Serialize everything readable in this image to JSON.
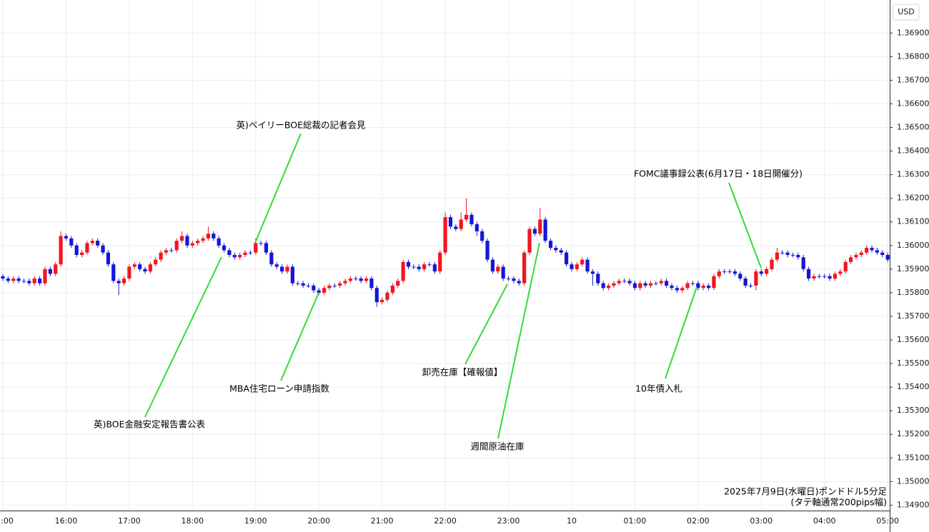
{
  "chart_data": {
    "type": "candlestick",
    "currency": "USD",
    "note_lines": [
      "2025年7月9日(水曜日)ポンドドル5分足",
      "(タテ軸通常200pips幅)"
    ],
    "up_color": "#f01620",
    "down_color": "#1616d6",
    "grid": true,
    "ylim": [
      1.3488,
      1.3704
    ],
    "yticks": [
      {
        "value": 1.349,
        "label": "1.34900"
      },
      {
        "value": 1.35,
        "label": "1.35000"
      },
      {
        "value": 1.351,
        "label": "1.35100"
      },
      {
        "value": 1.352,
        "label": "1.35200"
      },
      {
        "value": 1.353,
        "label": "1.35300"
      },
      {
        "value": 1.354,
        "label": "1.35400"
      },
      {
        "value": 1.355,
        "label": "1.35500"
      },
      {
        "value": 1.356,
        "label": "1.35600"
      },
      {
        "value": 1.357,
        "label": "1.35700"
      },
      {
        "value": 1.358,
        "label": "1.35800"
      },
      {
        "value": 1.359,
        "label": "1.35900"
      },
      {
        "value": 1.36,
        "label": "1.36000"
      },
      {
        "value": 1.361,
        "label": "1.36100"
      },
      {
        "value": 1.362,
        "label": "1.36200"
      },
      {
        "value": 1.363,
        "label": "1.36300"
      },
      {
        "value": 1.364,
        "label": "1.36400"
      },
      {
        "value": 1.365,
        "label": "1.36500"
      },
      {
        "value": 1.366,
        "label": "1.36600"
      },
      {
        "value": 1.367,
        "label": "1.36700"
      },
      {
        "value": 1.368,
        "label": "1.36800"
      },
      {
        "value": 1.369,
        "label": "1.36900"
      }
    ],
    "categories": [
      ":00",
      null,
      null,
      null,
      null,
      null,
      null,
      null,
      null,
      null,
      null,
      null,
      "16:00",
      null,
      null,
      null,
      null,
      null,
      null,
      null,
      null,
      null,
      null,
      null,
      "17:00",
      null,
      null,
      null,
      null,
      null,
      null,
      null,
      null,
      null,
      null,
      null,
      "18:00",
      null,
      null,
      null,
      null,
      null,
      null,
      null,
      null,
      null,
      null,
      null,
      "19:00",
      null,
      null,
      null,
      null,
      null,
      null,
      null,
      null,
      null,
      null,
      null,
      "20:00",
      null,
      null,
      null,
      null,
      null,
      null,
      null,
      null,
      null,
      null,
      null,
      "21:00",
      null,
      null,
      null,
      null,
      null,
      null,
      null,
      null,
      null,
      null,
      null,
      "22:00",
      null,
      null,
      null,
      null,
      null,
      null,
      null,
      null,
      null,
      null,
      null,
      "23:00",
      null,
      null,
      null,
      null,
      null,
      null,
      null,
      null,
      null,
      null,
      null,
      "10",
      null,
      null,
      null,
      null,
      null,
      null,
      null,
      null,
      null,
      null,
      null,
      "01:00",
      null,
      null,
      null,
      null,
      null,
      null,
      null,
      null,
      null,
      null,
      null,
      "02:00",
      null,
      null,
      null,
      null,
      null,
      null,
      null,
      null,
      null,
      null,
      null,
      "03:00",
      null,
      null,
      null,
      null,
      null,
      null,
      null,
      null,
      null,
      null,
      null,
      "04:00",
      null,
      null,
      null,
      null,
      null,
      null,
      null,
      null,
      null,
      null,
      null,
      "05:00"
    ],
    "open": [
      1.3587,
      1.3586,
      1.3585,
      1.3586,
      1.3585,
      1.3585,
      1.3584,
      1.3586,
      1.3584,
      1.359,
      1.3588,
      1.3592,
      1.3604,
      1.3603,
      1.36,
      1.3596,
      1.3597,
      1.3601,
      1.3602,
      1.36,
      1.3597,
      1.3592,
      1.3585,
      1.3584,
      1.3586,
      1.3591,
      1.3592,
      1.359,
      1.3589,
      1.3592,
      1.3594,
      1.3597,
      1.3598,
      1.3598,
      1.3602,
      1.3604,
      1.36,
      1.3601,
      1.3602,
      1.3603,
      1.3605,
      1.3603,
      1.36,
      1.3598,
      1.3596,
      1.3595,
      1.3596,
      1.3597,
      1.3597,
      1.3601,
      1.3601,
      1.3597,
      1.3592,
      1.3591,
      1.3589,
      1.3591,
      1.3584,
      1.3584,
      1.3583,
      1.3583,
      1.3581,
      1.358,
      1.3582,
      1.3583,
      1.3583,
      1.3584,
      1.3585,
      1.3586,
      1.3586,
      1.3585,
      1.3586,
      1.3582,
      1.3576,
      1.3577,
      1.358,
      1.3583,
      1.3585,
      1.3593,
      1.3591,
      1.3591,
      1.359,
      1.3592,
      1.3592,
      1.3589,
      1.3597,
      1.3612,
      1.3608,
      1.3607,
      1.3611,
      1.3613,
      1.3609,
      1.3606,
      1.3602,
      1.3594,
      1.3589,
      1.3591,
      1.3586,
      1.3586,
      1.3585,
      1.3584,
      1.3597,
      1.3607,
      1.3605,
      1.3611,
      1.3602,
      1.3599,
      1.3598,
      1.3597,
      1.3592,
      1.359,
      1.3592,
      1.3594,
      1.3589,
      1.3588,
      1.3584,
      1.3582,
      1.3583,
      1.3584,
      1.3585,
      1.3585,
      1.3584,
      1.3582,
      1.3584,
      1.3583,
      1.3584,
      1.3584,
      1.3585,
      1.3583,
      1.3582,
      1.3581,
      1.3582,
      1.3584,
      1.3584,
      1.3582,
      1.3583,
      1.3582,
      1.3587,
      1.3589,
      1.3589,
      1.3589,
      1.3588,
      1.3586,
      1.3583,
      1.3583,
      1.3589,
      1.3588,
      1.359,
      1.3594,
      1.3597,
      1.3597,
      1.3596,
      1.3596,
      1.3595,
      1.359,
      1.3586,
      1.3587,
      1.3587,
      1.3587,
      1.3586,
      1.3588,
      1.3589,
      1.3593,
      1.3595,
      1.3596,
      1.3597,
      1.3599,
      1.3598,
      1.3597,
      1.3596
    ],
    "high": [
      1.3588,
      1.3587,
      1.3587,
      1.3587,
      1.3586,
      1.3586,
      1.3587,
      1.3587,
      1.3591,
      1.3591,
      1.3593,
      1.3606,
      1.3605,
      1.3604,
      1.3601,
      1.3598,
      1.3602,
      1.3603,
      1.3603,
      1.3601,
      1.3598,
      1.3593,
      1.3586,
      1.3587,
      1.3592,
      1.3593,
      1.3593,
      1.3591,
      1.3593,
      1.3595,
      1.3598,
      1.3599,
      1.3599,
      1.3603,
      1.3606,
      1.3605,
      1.3602,
      1.3603,
      1.3604,
      1.3608,
      1.3606,
      1.3604,
      1.3601,
      1.3599,
      1.3597,
      1.3597,
      1.3598,
      1.3598,
      1.3603,
      1.3602,
      1.3602,
      1.3598,
      1.3593,
      1.3592,
      1.3592,
      1.3592,
      1.3585,
      1.3585,
      1.3584,
      1.3584,
      1.3582,
      1.3583,
      1.3584,
      1.3584,
      1.3585,
      1.3586,
      1.3587,
      1.3587,
      1.3587,
      1.3587,
      1.3587,
      1.3583,
      1.3578,
      1.3581,
      1.3584,
      1.3586,
      1.3594,
      1.3594,
      1.3592,
      1.3592,
      1.3593,
      1.3593,
      1.3593,
      1.3598,
      1.3614,
      1.3613,
      1.3609,
      1.3614,
      1.362,
      1.3614,
      1.361,
      1.3607,
      1.3603,
      1.3595,
      1.3592,
      1.3592,
      1.3587,
      1.3587,
      1.3586,
      1.3598,
      1.3608,
      1.3608,
      1.3616,
      1.3612,
      1.3603,
      1.36,
      1.3599,
      1.3598,
      1.3593,
      1.3593,
      1.3595,
      1.3595,
      1.359,
      1.3589,
      1.3585,
      1.3584,
      1.3585,
      1.3586,
      1.3586,
      1.3586,
      1.3585,
      1.3585,
      1.3585,
      1.3585,
      1.3585,
      1.3586,
      1.3586,
      1.3584,
      1.3583,
      1.3583,
      1.3585,
      1.3585,
      1.3585,
      1.3584,
      1.3584,
      1.3588,
      1.359,
      1.359,
      1.359,
      1.359,
      1.3589,
      1.3587,
      1.3584,
      1.359,
      1.359,
      1.3591,
      1.3595,
      1.3599,
      1.3598,
      1.3598,
      1.3597,
      1.3597,
      1.3596,
      1.3591,
      1.3588,
      1.3588,
      1.3588,
      1.3588,
      1.3589,
      1.359,
      1.3594,
      1.3596,
      1.3597,
      1.3598,
      1.36,
      1.36,
      1.3599,
      1.3598,
      1.3597
    ],
    "low": [
      1.3585,
      1.3584,
      1.3584,
      1.3584,
      1.3584,
      1.3583,
      1.3583,
      1.3583,
      1.3583,
      1.3587,
      1.3587,
      1.3591,
      1.3602,
      1.3599,
      1.3595,
      1.3595,
      1.3596,
      1.36,
      1.3599,
      1.3596,
      1.3591,
      1.3584,
      1.3579,
      1.3583,
      1.3585,
      1.359,
      1.3589,
      1.3588,
      1.3588,
      1.3591,
      1.3593,
      1.3596,
      1.3597,
      1.3597,
      1.3601,
      1.3599,
      1.3599,
      1.36,
      1.3601,
      1.3602,
      1.3602,
      1.3599,
      1.3597,
      1.3595,
      1.3594,
      1.3594,
      1.3595,
      1.3596,
      1.3596,
      1.36,
      1.3596,
      1.3591,
      1.359,
      1.3588,
      1.3588,
      1.3583,
      1.3583,
      1.3582,
      1.3582,
      1.358,
      1.3579,
      1.3579,
      1.3581,
      1.3582,
      1.3582,
      1.3583,
      1.3584,
      1.3585,
      1.3584,
      1.3584,
      1.3581,
      1.3574,
      1.3575,
      1.3576,
      1.3579,
      1.3582,
      1.3584,
      1.359,
      1.359,
      1.3589,
      1.3589,
      1.3591,
      1.3588,
      1.3588,
      1.3596,
      1.3607,
      1.3606,
      1.3606,
      1.361,
      1.3608,
      1.3604,
      1.3601,
      1.3593,
      1.3588,
      1.3588,
      1.3585,
      1.3585,
      1.3584,
      1.3583,
      1.3583,
      1.3596,
      1.3604,
      1.3604,
      1.3601,
      1.3598,
      1.3597,
      1.3596,
      1.3591,
      1.3589,
      1.3589,
      1.3591,
      1.3588,
      1.3583,
      1.3583,
      1.3581,
      1.3581,
      1.3582,
      1.3583,
      1.3584,
      1.3583,
      1.3581,
      1.3581,
      1.3582,
      1.3582,
      1.3583,
      1.3583,
      1.3582,
      1.3581,
      1.358,
      1.358,
      1.3581,
      1.3583,
      1.3581,
      1.3581,
      1.3581,
      1.3581,
      1.3586,
      1.3588,
      1.3588,
      1.3587,
      1.3585,
      1.3582,
      1.3582,
      1.3581,
      1.3587,
      1.3587,
      1.3589,
      1.3593,
      1.3596,
      1.3595,
      1.3595,
      1.3594,
      1.3589,
      1.3585,
      1.3585,
      1.3586,
      1.3586,
      1.3585,
      1.3585,
      1.3587,
      1.3588,
      1.3592,
      1.3594,
      1.3595,
      1.3596,
      1.3597,
      1.3596,
      1.3595,
      1.3593
    ],
    "close": [
      1.3586,
      1.3585,
      1.3586,
      1.3585,
      1.3585,
      1.3584,
      1.3586,
      1.3584,
      1.359,
      1.3588,
      1.3592,
      1.3604,
      1.3603,
      1.36,
      1.3596,
      1.3597,
      1.3601,
      1.3602,
      1.36,
      1.3597,
      1.3592,
      1.3585,
      1.3584,
      1.3586,
      1.3591,
      1.3592,
      1.359,
      1.3589,
      1.3592,
      1.3594,
      1.3597,
      1.3598,
      1.3598,
      1.3602,
      1.3604,
      1.36,
      1.3601,
      1.3602,
      1.3603,
      1.3605,
      1.3603,
      1.36,
      1.3598,
      1.3596,
      1.3595,
      1.3596,
      1.3597,
      1.3597,
      1.3601,
      1.3601,
      1.3597,
      1.3592,
      1.3591,
      1.3589,
      1.3591,
      1.3584,
      1.3584,
      1.3583,
      1.3583,
      1.3581,
      1.358,
      1.3582,
      1.3583,
      1.3583,
      1.3584,
      1.3585,
      1.3586,
      1.3586,
      1.3585,
      1.3586,
      1.3582,
      1.3576,
      1.3577,
      1.358,
      1.3583,
      1.3585,
      1.3593,
      1.3591,
      1.3591,
      1.359,
      1.3592,
      1.3592,
      1.3589,
      1.3597,
      1.3612,
      1.3608,
      1.3607,
      1.3611,
      1.3613,
      1.3609,
      1.3606,
      1.3602,
      1.3594,
      1.3589,
      1.3591,
      1.3586,
      1.3586,
      1.3585,
      1.3584,
      1.3597,
      1.3607,
      1.3605,
      1.3611,
      1.3602,
      1.3599,
      1.3598,
      1.3597,
      1.3592,
      1.359,
      1.3592,
      1.3594,
      1.3589,
      1.3588,
      1.3584,
      1.3582,
      1.3583,
      1.3584,
      1.3585,
      1.3585,
      1.3584,
      1.3582,
      1.3584,
      1.3583,
      1.3584,
      1.3584,
      1.3585,
      1.3583,
      1.3582,
      1.3581,
      1.3582,
      1.3584,
      1.3584,
      1.3582,
      1.3583,
      1.3582,
      1.3587,
      1.3589,
      1.3589,
      1.3589,
      1.3588,
      1.3586,
      1.3583,
      1.3583,
      1.3589,
      1.3588,
      1.359,
      1.3594,
      1.3597,
      1.3597,
      1.3596,
      1.3596,
      1.3595,
      1.359,
      1.3586,
      1.3587,
      1.3587,
      1.3587,
      1.3586,
      1.3588,
      1.3589,
      1.3593,
      1.3595,
      1.3596,
      1.3597,
      1.3599,
      1.3598,
      1.3597,
      1.3596,
      1.3594
    ],
    "annotations": [
      "英)ベイリーBOE総裁の記者会見",
      "英)BOE金融安定報告書公表",
      "MBA住宅ローン申請指数",
      "卸売在庫【確報値】",
      "週間原油在庫",
      "10年債入札",
      "FOMC議事録公表(6月17日・18日開催分)"
    ]
  }
}
